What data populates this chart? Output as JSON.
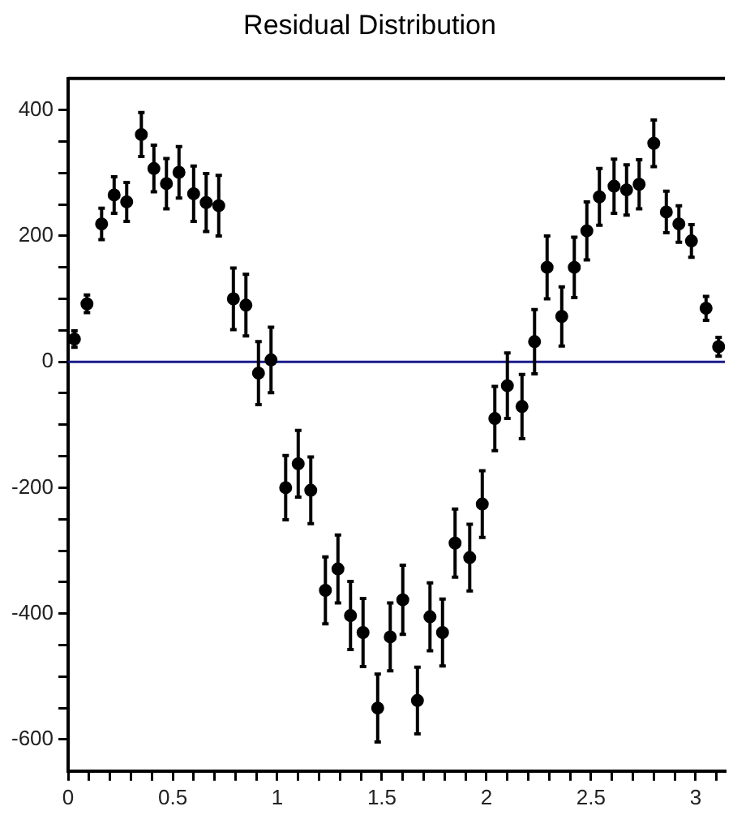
{
  "chart_data": {
    "type": "scatter",
    "title": "Residual Distribution",
    "x": [
      0.03,
      0.09,
      0.16,
      0.22,
      0.28,
      0.35,
      0.41,
      0.47,
      0.53,
      0.6,
      0.66,
      0.72,
      0.79,
      0.85,
      0.91,
      0.97,
      1.04,
      1.1,
      1.16,
      1.23,
      1.29,
      1.35,
      1.41,
      1.48,
      1.54,
      1.6,
      1.67,
      1.73,
      1.79,
      1.85,
      1.92,
      1.98,
      2.04,
      2.1,
      2.17,
      2.23,
      2.29,
      2.36,
      2.42,
      2.48,
      2.54,
      2.61,
      2.67,
      2.73,
      2.8,
      2.86,
      2.92,
      2.98,
      3.05,
      3.11
    ],
    "values": [
      36,
      92,
      219,
      265,
      254,
      361,
      307,
      283,
      301,
      267,
      253,
      248,
      100,
      90,
      -18,
      3,
      -200,
      -162,
      -204,
      -363,
      -329,
      -403,
      -430,
      -550,
      -437,
      -378,
      -538,
      -405,
      -430,
      -288,
      -311,
      -226,
      -90,
      -38,
      -71,
      32,
      150,
      72,
      150,
      208,
      262,
      279,
      273,
      282,
      347,
      238,
      219,
      192,
      85,
      24
    ],
    "errors": [
      13,
      14,
      25,
      29,
      31,
      35,
      37,
      40,
      41,
      44,
      46,
      48,
      49,
      49,
      50,
      52,
      51,
      53,
      53,
      53,
      54,
      54,
      54,
      54,
      54,
      55,
      53,
      54,
      53,
      54,
      53,
      53,
      51,
      52,
      51,
      51,
      50,
      47,
      48,
      46,
      45,
      43,
      40,
      39,
      37,
      33,
      29,
      26,
      19,
      15
    ],
    "color": "#000000",
    "marker": "circle",
    "grid": false,
    "xlim": [
      0,
      3.14
    ],
    "ylim": [
      -650,
      450
    ],
    "xticks": [
      0,
      {
        "value": 0.1,
        "label": null
      },
      {
        "value": 0.2,
        "label": null
      },
      {
        "value": 0.3,
        "label": null
      },
      {
        "value": 0.4,
        "label": null
      },
      0.5,
      {
        "value": 0.6,
        "label": null
      },
      {
        "value": 0.7,
        "label": null
      },
      {
        "value": 0.8,
        "label": null
      },
      {
        "value": 0.9,
        "label": null
      },
      1,
      {
        "value": 1.1,
        "label": null
      },
      {
        "value": 1.2,
        "label": null
      },
      {
        "value": 1.3,
        "label": null
      },
      {
        "value": 1.4,
        "label": null
      },
      1.5,
      {
        "value": 1.6,
        "label": null
      },
      {
        "value": 1.7,
        "label": null
      },
      {
        "value": 1.8,
        "label": null
      },
      {
        "value": 1.9,
        "label": null
      },
      2,
      {
        "value": 2.1,
        "label": null
      },
      {
        "value": 2.2,
        "label": null
      },
      {
        "value": 2.3,
        "label": null
      },
      {
        "value": 2.4,
        "label": null
      },
      2.5,
      {
        "value": 2.6,
        "label": null
      },
      {
        "value": 2.7,
        "label": null
      },
      {
        "value": 2.8,
        "label": null
      },
      {
        "value": 2.9,
        "label": null
      },
      3,
      {
        "value": 3.1,
        "label": null
      }
    ],
    "yticks": [
      -600,
      {
        "value": -550,
        "label": null
      },
      {
        "value": -500,
        "label": null
      },
      {
        "value": -450,
        "label": null
      },
      -400,
      {
        "value": -350,
        "label": null
      },
      {
        "value": -300,
        "label": null
      },
      {
        "value": -250,
        "label": null
      },
      -200,
      {
        "value": -150,
        "label": null
      },
      {
        "value": -100,
        "label": null
      },
      {
        "value": -50,
        "label": null
      },
      0,
      {
        "value": 50,
        "label": null
      },
      {
        "value": 100,
        "label": null
      },
      {
        "value": 150,
        "label": null
      },
      200,
      {
        "value": 250,
        "label": null
      },
      {
        "value": 300,
        "label": null
      },
      {
        "value": 350,
        "label": null
      },
      400
    ],
    "ref_lines": [
      {
        "axis": "y",
        "value": 0,
        "color": "#1a1a8c",
        "line_style": "solid"
      }
    ]
  }
}
